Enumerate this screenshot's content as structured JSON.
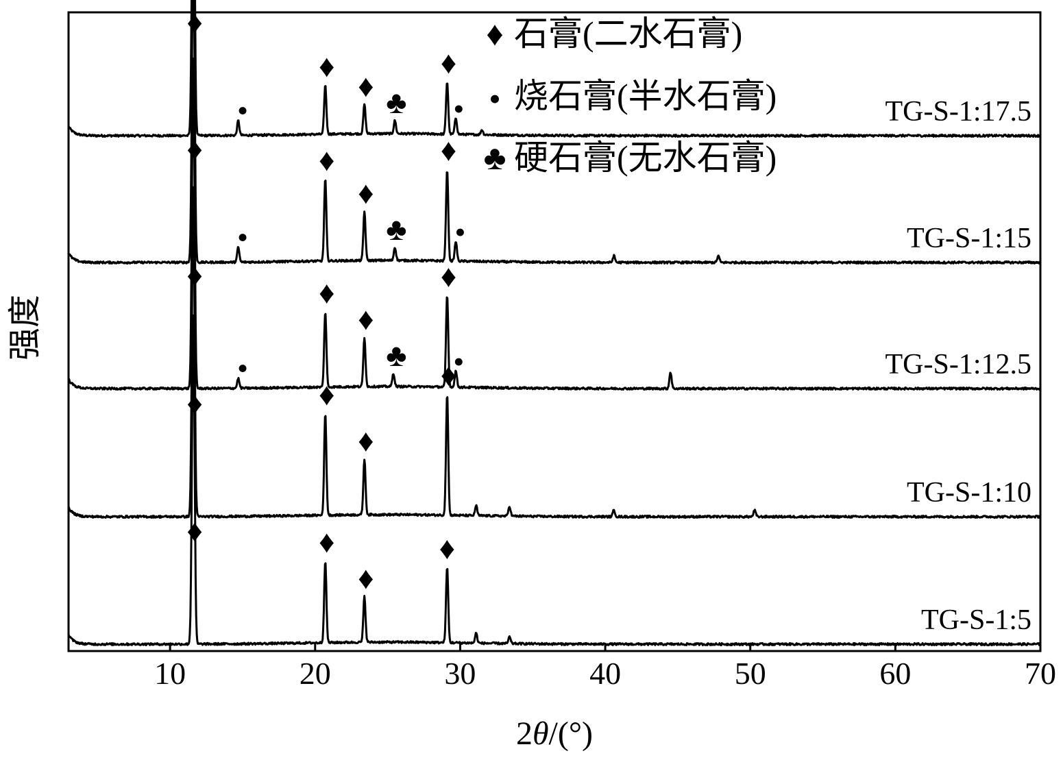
{
  "chart_data": {
    "type": "line",
    "xlabel_parts": {
      "prefix": "2",
      "theta": "θ",
      "suffix": "/(°)"
    },
    "ylabel": "强度",
    "xlim": [
      3,
      70
    ],
    "x_ticks": [
      "10",
      "20",
      "30",
      "40",
      "50",
      "60",
      "70"
    ],
    "x_tick_values": [
      10,
      20,
      30,
      40,
      50,
      60,
      70
    ],
    "grid": false,
    "legend_position": "top-right",
    "legend": [
      {
        "symbol": "♦",
        "text": "石膏(二水石膏)"
      },
      {
        "symbol": "•",
        "text": "烧石膏(半水石膏)"
      },
      {
        "symbol": "♣",
        "text": "硬石膏(无水石膏)"
      }
    ],
    "series": [
      {
        "name": "TG-S-1:17.5",
        "peaks": [
          {
            "x": 11.6,
            "h": 1.0
          },
          {
            "x": 14.7,
            "h": 0.045
          },
          {
            "x": 20.7,
            "h": 0.15
          },
          {
            "x": 23.4,
            "h": 0.09
          },
          {
            "x": 25.5,
            "h": 0.04
          },
          {
            "x": 29.1,
            "h": 0.16
          },
          {
            "x": 29.7,
            "h": 0.05
          },
          {
            "x": 31.5,
            "h": 0.015
          }
        ],
        "markers": [
          {
            "symbol": "♦",
            "x": 11.7
          },
          {
            "symbol": "•",
            "x": 15.0
          },
          {
            "symbol": "♦",
            "x": 20.8
          },
          {
            "symbol": "♦",
            "x": 23.5
          },
          {
            "symbol": "♣",
            "x": 25.6
          },
          {
            "symbol": "♦",
            "x": 29.2
          },
          {
            "symbol": "•",
            "x": 29.9
          }
        ]
      },
      {
        "name": "TG-S-1:15",
        "peaks": [
          {
            "x": 11.6,
            "h": 1.0
          },
          {
            "x": 14.7,
            "h": 0.045
          },
          {
            "x": 20.7,
            "h": 0.25
          },
          {
            "x": 23.4,
            "h": 0.15
          },
          {
            "x": 25.5,
            "h": 0.04
          },
          {
            "x": 29.1,
            "h": 0.28
          },
          {
            "x": 29.7,
            "h": 0.06
          },
          {
            "x": 40.6,
            "h": 0.02
          },
          {
            "x": 47.8,
            "h": 0.02
          }
        ],
        "markers": [
          {
            "symbol": "♦",
            "x": 11.7
          },
          {
            "symbol": "•",
            "x": 15.0
          },
          {
            "symbol": "♦",
            "x": 20.8
          },
          {
            "symbol": "♦",
            "x": 23.5
          },
          {
            "symbol": "♣",
            "x": 25.6
          },
          {
            "symbol": "♦",
            "x": 29.2
          },
          {
            "symbol": "•",
            "x": 30.0
          }
        ]
      },
      {
        "name": "TG-S-1:12.5",
        "peaks": [
          {
            "x": 11.6,
            "h": 1.0
          },
          {
            "x": 14.7,
            "h": 0.03
          },
          {
            "x": 20.7,
            "h": 0.23
          },
          {
            "x": 23.4,
            "h": 0.15
          },
          {
            "x": 25.4,
            "h": 0.04
          },
          {
            "x": 29.1,
            "h": 0.28
          },
          {
            "x": 29.7,
            "h": 0.05
          },
          {
            "x": 44.5,
            "h": 0.05
          }
        ],
        "markers": [
          {
            "symbol": "♦",
            "x": 11.7
          },
          {
            "symbol": "•",
            "x": 15.0
          },
          {
            "symbol": "♦",
            "x": 20.8
          },
          {
            "symbol": "♦",
            "x": 23.5
          },
          {
            "symbol": "♣",
            "x": 25.6
          },
          {
            "symbol": "♦",
            "x": 29.2
          },
          {
            "symbol": "•",
            "x": 29.9
          }
        ]
      },
      {
        "name": "TG-S-1:10",
        "peaks": [
          {
            "x": 11.6,
            "h": 1.0
          },
          {
            "x": 20.7,
            "h": 0.31
          },
          {
            "x": 23.4,
            "h": 0.17
          },
          {
            "x": 29.1,
            "h": 0.37
          },
          {
            "x": 31.1,
            "h": 0.03
          },
          {
            "x": 33.4,
            "h": 0.03
          },
          {
            "x": 40.6,
            "h": 0.02
          },
          {
            "x": 50.3,
            "h": 0.02
          }
        ],
        "markers": [
          {
            "symbol": "♦",
            "x": 11.7
          },
          {
            "symbol": "♦",
            "x": 20.8
          },
          {
            "symbol": "♦",
            "x": 23.5
          },
          {
            "symbol": "♦",
            "x": 29.2
          }
        ]
      },
      {
        "name": "TG-S-1:5",
        "peaks": [
          {
            "x": 11.6,
            "h": 1.0
          },
          {
            "x": 20.7,
            "h": 0.25
          },
          {
            "x": 23.4,
            "h": 0.14
          },
          {
            "x": 29.1,
            "h": 0.23
          },
          {
            "x": 31.1,
            "h": 0.03
          },
          {
            "x": 33.4,
            "h": 0.02
          }
        ],
        "markers": [
          {
            "symbol": "♦",
            "x": 11.7
          },
          {
            "symbol": "♦",
            "x": 20.8
          },
          {
            "symbol": "♦",
            "x": 23.5
          },
          {
            "symbol": "♦",
            "x": 29.1
          }
        ]
      }
    ]
  }
}
